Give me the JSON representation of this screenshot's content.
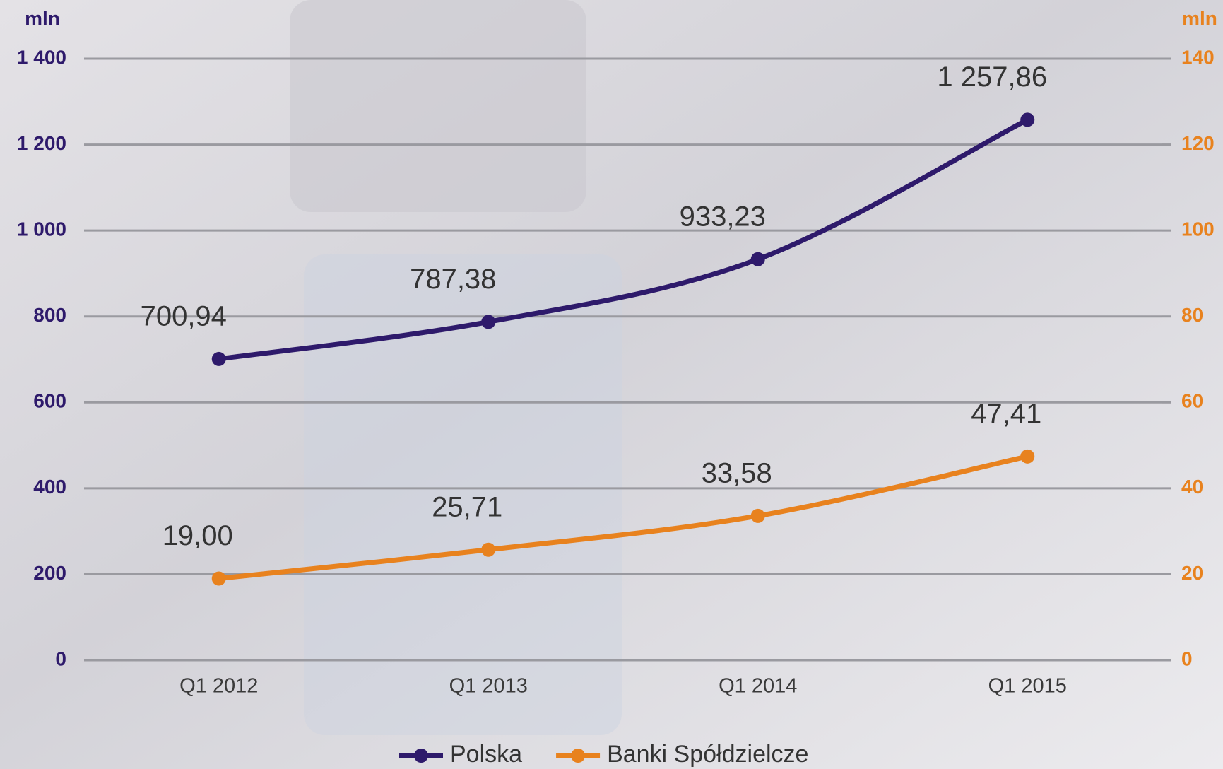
{
  "chart_data": {
    "type": "line",
    "categories": [
      "Q1 2012",
      "Q1 2013",
      "Q1 2014",
      "Q1 2015"
    ],
    "ylabel": "mln",
    "y2label": "mln",
    "ylim": [
      0,
      1400
    ],
    "yticks": [
      0,
      200,
      400,
      600,
      800,
      {
        "value": 1000,
        "label": "1 000"
      },
      {
        "value": 1200,
        "label": "1 200"
      },
      {
        "value": 1400,
        "label": "1 400"
      }
    ],
    "y2lim": [
      0,
      140
    ],
    "y2ticks": [
      0,
      20,
      40,
      60,
      80,
      100,
      120,
      140
    ],
    "grid": true,
    "legend": "bottom",
    "series": [
      {
        "name": "Polska",
        "color": "#2e1a6b",
        "values": [
          700.94,
          787.38,
          933.23,
          1257.86
        ],
        "value_labels": [
          "700,94",
          "787,38",
          "933,23",
          "1 257,86"
        ]
      },
      {
        "name": "Banki Spółdzielcze",
        "color": "#e8821e",
        "axis": "y2",
        "values": [
          19.0,
          25.71,
          33.58,
          47.41
        ],
        "value_labels": [
          "19,00",
          "25,71",
          "33,58",
          "47,41"
        ]
      }
    ]
  }
}
